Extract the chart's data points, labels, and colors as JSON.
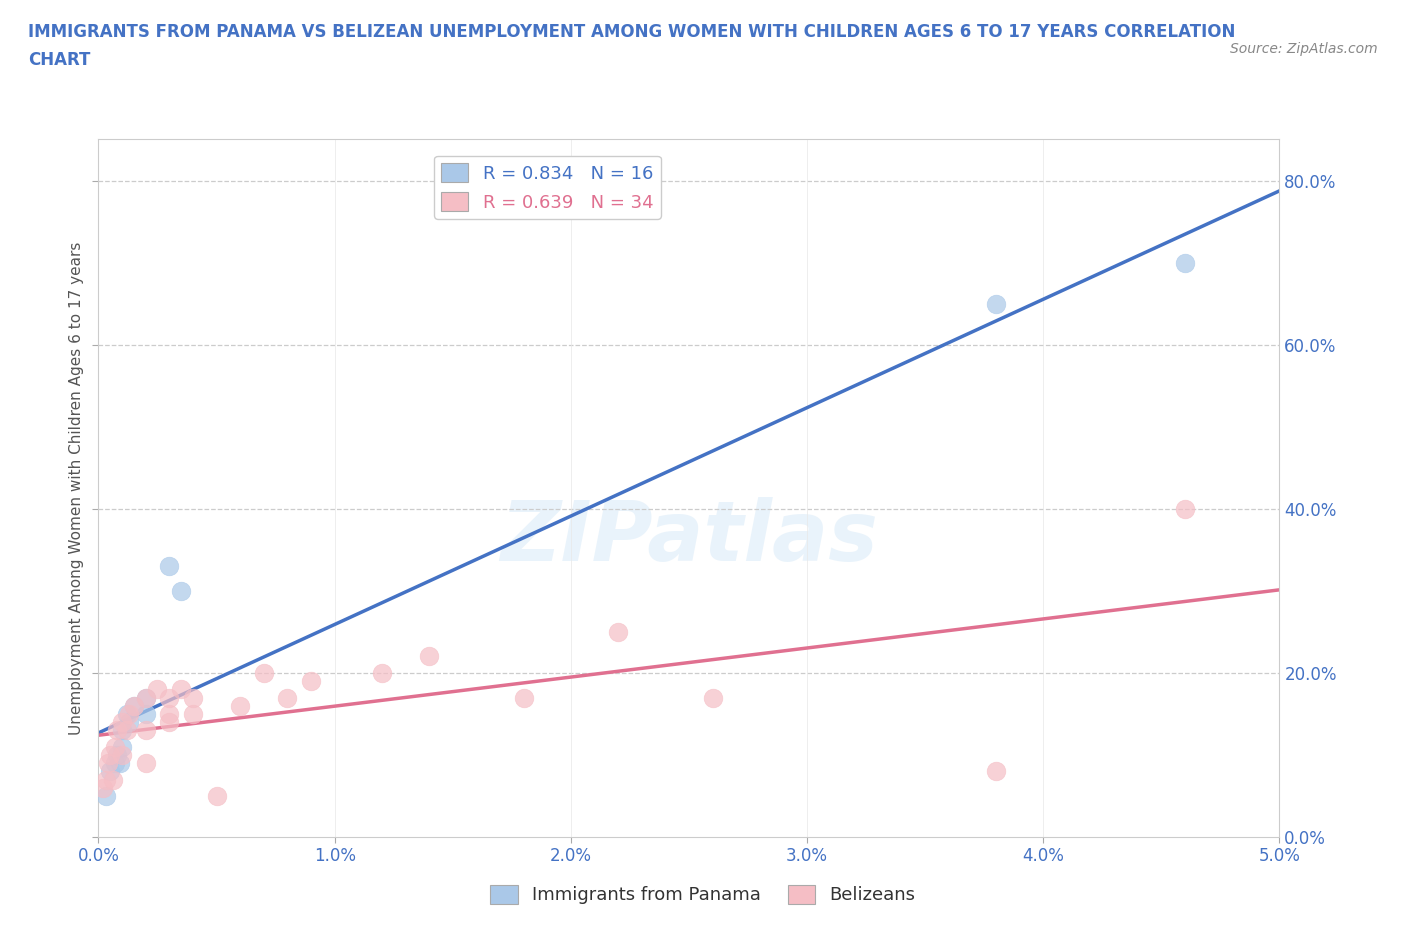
{
  "title_line1": "IMMIGRANTS FROM PANAMA VS BELIZEAN UNEMPLOYMENT AMONG WOMEN WITH CHILDREN AGES 6 TO 17 YEARS CORRELATION",
  "title_line2": "CHART",
  "source": "Source: ZipAtlas.com",
  "ylabel": "Unemployment Among Women with Children Ages 6 to 17 years",
  "xlim": [
    0.0,
    0.05
  ],
  "ylim": [
    0.0,
    0.85
  ],
  "xticks": [
    0.0,
    0.01,
    0.02,
    0.03,
    0.04,
    0.05
  ],
  "xtick_labels": [
    "0.0%",
    "1.0%",
    "2.0%",
    "3.0%",
    "4.0%",
    "5.0%"
  ],
  "ytick_labels": [
    "0.0%",
    "20.0%",
    "40.0%",
    "60.0%",
    "80.0%"
  ],
  "yticks": [
    0.0,
    0.2,
    0.4,
    0.6,
    0.8
  ],
  "panama_x": [
    0.0003,
    0.0005,
    0.0007,
    0.0008,
    0.0009,
    0.001,
    0.001,
    0.0012,
    0.0013,
    0.0015,
    0.002,
    0.002,
    0.003,
    0.0035,
    0.038,
    0.046
  ],
  "panama_y": [
    0.05,
    0.08,
    0.09,
    0.1,
    0.09,
    0.11,
    0.13,
    0.15,
    0.14,
    0.16,
    0.17,
    0.15,
    0.33,
    0.3,
    0.65,
    0.7
  ],
  "belize_x": [
    0.0002,
    0.0003,
    0.0004,
    0.0005,
    0.0006,
    0.0007,
    0.0008,
    0.001,
    0.001,
    0.0012,
    0.0013,
    0.0015,
    0.002,
    0.002,
    0.002,
    0.0025,
    0.003,
    0.003,
    0.003,
    0.0035,
    0.004,
    0.004,
    0.005,
    0.006,
    0.007,
    0.008,
    0.009,
    0.012,
    0.014,
    0.018,
    0.022,
    0.026,
    0.038,
    0.046
  ],
  "belize_y": [
    0.06,
    0.07,
    0.09,
    0.1,
    0.07,
    0.11,
    0.13,
    0.1,
    0.14,
    0.13,
    0.15,
    0.16,
    0.09,
    0.13,
    0.17,
    0.18,
    0.15,
    0.14,
    0.17,
    0.18,
    0.15,
    0.17,
    0.05,
    0.16,
    0.2,
    0.17,
    0.19,
    0.2,
    0.22,
    0.17,
    0.25,
    0.17,
    0.08,
    0.4
  ],
  "panama_color": "#aac8e8",
  "belize_color": "#f5bec5",
  "panama_line_color": "#4472C4",
  "belize_line_color": "#e07090",
  "legend_panama_label": "R = 0.834   N = 16",
  "legend_belize_label": "R = 0.639   N = 34",
  "legend_panama_text_color": "#4472C4",
  "legend_belize_text_color": "#e07090",
  "watermark": "ZIPatlas",
  "background_color": "#ffffff",
  "grid_color": "#cccccc",
  "title_color": "#4472C4",
  "axis_label_color": "#555555",
  "tick_label_color": "#4472C4",
  "bottom_legend_panama": "Immigrants from Panama",
  "bottom_legend_belize": "Belizeans"
}
